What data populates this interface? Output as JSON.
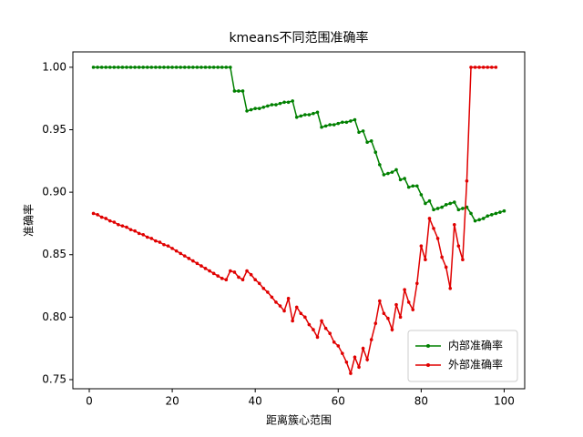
{
  "chart_data": {
    "type": "line",
    "title": "kmeans不同范围准确率",
    "x_label": "距离簇心范围",
    "y_label": "准确率",
    "x": [
      1,
      2,
      3,
      4,
      5,
      6,
      7,
      8,
      9,
      10,
      11,
      12,
      13,
      14,
      15,
      16,
      17,
      18,
      19,
      20,
      21,
      22,
      23,
      24,
      25,
      26,
      27,
      28,
      29,
      30,
      31,
      32,
      33,
      34,
      35,
      36,
      37,
      38,
      39,
      40,
      41,
      42,
      43,
      44,
      45,
      46,
      47,
      48,
      49,
      50,
      51,
      52,
      53,
      54,
      55,
      56,
      57,
      58,
      59,
      60,
      61,
      62,
      63,
      64,
      65,
      66,
      67,
      68,
      69,
      70,
      71,
      72,
      73,
      74,
      75,
      76,
      77,
      78,
      79,
      80,
      81,
      82,
      83,
      84,
      85,
      86,
      87,
      88,
      89,
      90,
      91,
      92,
      93,
      94,
      95,
      96,
      97,
      98,
      99,
      100
    ],
    "series": [
      {
        "name": "内部准确率",
        "color": "#008000",
        "values": [
          1.0,
          1.0,
          1.0,
          1.0,
          1.0,
          1.0,
          1.0,
          1.0,
          1.0,
          1.0,
          1.0,
          1.0,
          1.0,
          1.0,
          1.0,
          1.0,
          1.0,
          1.0,
          1.0,
          1.0,
          1.0,
          1.0,
          1.0,
          1.0,
          1.0,
          1.0,
          1.0,
          1.0,
          1.0,
          1.0,
          1.0,
          1.0,
          1.0,
          1.0,
          0.981,
          0.981,
          0.981,
          0.965,
          0.966,
          0.967,
          0.967,
          0.968,
          0.969,
          0.97,
          0.97,
          0.971,
          0.972,
          0.972,
          0.973,
          0.96,
          0.961,
          0.962,
          0.962,
          0.963,
          0.964,
          0.952,
          0.953,
          0.954,
          0.954,
          0.955,
          0.956,
          0.956,
          0.957,
          0.958,
          0.948,
          0.949,
          0.94,
          0.941,
          0.932,
          0.922,
          0.914,
          0.915,
          0.916,
          0.918,
          0.91,
          0.911,
          0.904,
          0.905,
          0.905,
          0.898,
          0.891,
          0.893,
          0.886,
          0.887,
          0.888,
          0.89,
          0.891,
          0.892,
          0.886,
          0.887,
          0.888,
          0.883,
          0.877,
          0.878,
          0.879,
          0.881,
          0.882,
          0.883,
          0.884,
          0.885
        ]
      },
      {
        "name": "外部准确率",
        "color": "#e00000",
        "values": [
          0.883,
          0.882,
          0.88,
          0.879,
          0.877,
          0.876,
          0.874,
          0.873,
          0.872,
          0.87,
          0.869,
          0.867,
          0.866,
          0.864,
          0.863,
          0.861,
          0.86,
          0.858,
          0.857,
          0.855,
          0.853,
          0.851,
          0.849,
          0.847,
          0.845,
          0.843,
          0.841,
          0.839,
          0.837,
          0.835,
          0.833,
          0.831,
          0.83,
          0.837,
          0.836,
          0.832,
          0.83,
          0.837,
          0.834,
          0.83,
          0.827,
          0.823,
          0.82,
          0.816,
          0.812,
          0.809,
          0.805,
          0.815,
          0.797,
          0.808,
          0.803,
          0.8,
          0.794,
          0.79,
          0.784,
          0.797,
          0.791,
          0.787,
          0.78,
          0.777,
          0.771,
          0.764,
          0.755,
          0.768,
          0.76,
          0.775,
          0.766,
          0.782,
          0.795,
          0.813,
          0.803,
          0.799,
          0.79,
          0.81,
          0.8,
          0.822,
          0.812,
          0.806,
          0.827,
          0.857,
          0.846,
          0.879,
          0.871,
          0.863,
          0.848,
          0.84,
          0.823,
          0.874,
          0.857,
          0.846,
          0.909,
          1.0,
          1.0,
          1.0,
          1.0,
          1.0,
          1.0,
          1.0,
          null,
          null
        ]
      }
    ],
    "xlim": [
      -3.95,
      104.95
    ],
    "ylim": [
      0.7427,
      1.0123
    ],
    "xticks": [
      0,
      20,
      40,
      60,
      80,
      100
    ],
    "yticks": [
      0.75,
      {
        "value": 0.8,
        "label": "0.80"
      },
      0.85,
      {
        "value": 0.9,
        "label": "0.90"
      },
      0.95,
      {
        "value": 1.0,
        "label": "1.00"
      }
    ],
    "legend": "lower right"
  }
}
